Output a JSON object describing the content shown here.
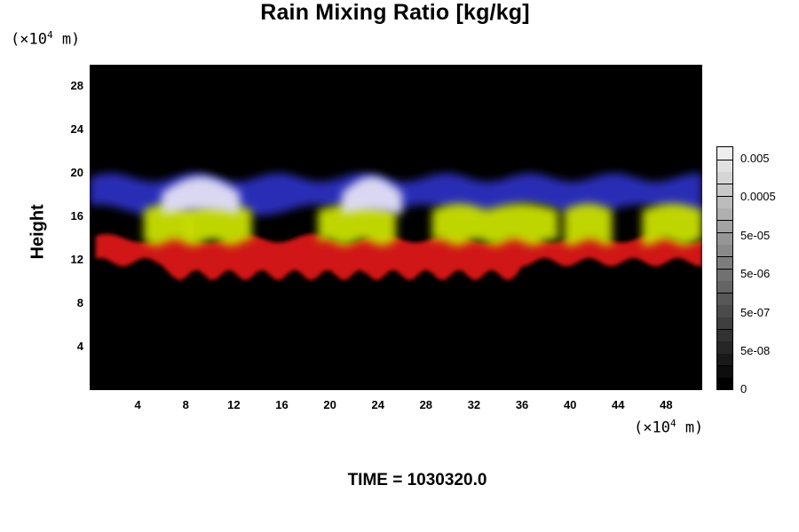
{
  "chart_data": {
    "type": "heatmap",
    "title": "Rain Mixing Ratio [kg/kg]",
    "ylabel": "Height",
    "y_unit_prefix": "(×10",
    "y_unit_exp": "4",
    "y_unit_suffix": " m)",
    "x_unit_prefix": "(×10",
    "x_unit_exp": "4",
    "x_unit_suffix": " m)",
    "xlim": [
      0,
      51
    ],
    "ylim": [
      0,
      30
    ],
    "xticks": [
      "4",
      "8",
      "12",
      "16",
      "20",
      "24",
      "28",
      "32",
      "36",
      "40",
      "44",
      "48"
    ],
    "yticks": [
      "4",
      "8",
      "12",
      "16",
      "20",
      "24",
      "28"
    ],
    "colorbar": {
      "labels": [
        "0",
        "5e-08",
        "5e-07",
        "5e-06",
        "5e-05",
        "0.0005",
        "0.005"
      ],
      "levels": 20,
      "low_color": "#000000",
      "high_color": "#f2f2f2"
    },
    "layers": [
      {
        "band": "blue",
        "color": "#2a2fc0",
        "y_range": [
          17,
          20
        ]
      },
      {
        "band": "white-lavender",
        "color": "#e3e0f5",
        "y_range": [
          16,
          20
        ]
      },
      {
        "band": "yellow-green",
        "color": "#c9e000",
        "y_range": [
          13,
          17
        ]
      },
      {
        "band": "red",
        "color": "#d01212",
        "y_range": [
          10.5,
          14
        ]
      }
    ],
    "time_label": "TIME = 1030320.0"
  }
}
